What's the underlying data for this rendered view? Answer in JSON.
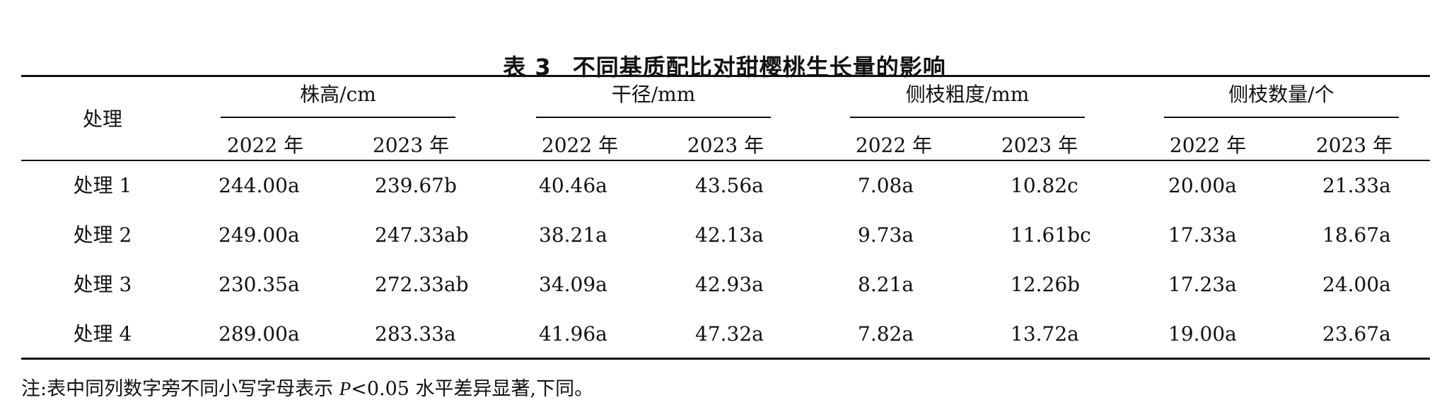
{
  "title": {
    "number": "表 3",
    "text": "不同基质配比对甜樱桃生长量的影响"
  },
  "header": {
    "row_label": "处理",
    "groups": [
      "株高/cm",
      "干径/mm",
      "侧枝粗度/mm",
      "侧枝数量/个"
    ],
    "years": [
      "2022 年",
      "2023 年"
    ]
  },
  "rows": [
    {
      "label": "处理 1",
      "values": [
        "244.00a",
        "239.67b",
        "40.46a",
        "43.56a",
        "7.08a",
        "10.82c",
        "20.00a",
        "21.33a"
      ]
    },
    {
      "label": "处理 2",
      "values": [
        "249.00a",
        "247.33ab",
        "38.21a",
        "42.13a",
        "9.73a",
        "11.61bc",
        "17.33a",
        "18.67a"
      ]
    },
    {
      "label": "处理 3",
      "values": [
        "230.35a",
        "272.33ab",
        "34.09a",
        "42.93a",
        "8.21a",
        "12.26b",
        "17.23a",
        "24.00a"
      ]
    },
    {
      "label": "处理 4",
      "values": [
        "289.00a",
        "283.33a",
        "41.96a",
        "47.32a",
        "7.82a",
        "13.72a",
        "19.00a",
        "23.67a"
      ]
    }
  ],
  "note": {
    "prefix": "注:表中同列数字旁不同小写字母表示",
    "symbol": "P",
    "suffix": "<0.05 水平差异显著,下同。"
  }
}
